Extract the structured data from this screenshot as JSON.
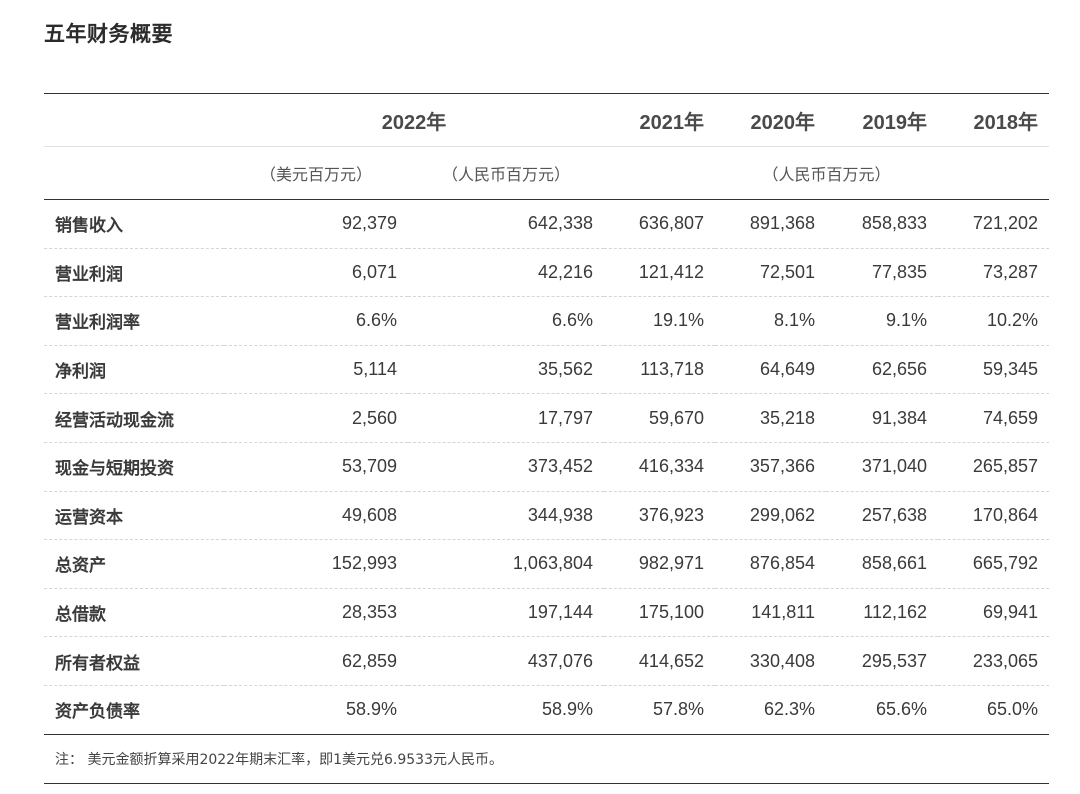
{
  "title": "五年财务概要",
  "header": {
    "years": [
      "2022年",
      "2021年",
      "2020年",
      "2019年",
      "2018年"
    ],
    "unit_usd": "（美元百万元）",
    "unit_rmb_2022": "（人民币百万元）",
    "unit_rmb_hist": "（人民币百万元）"
  },
  "rows": [
    {
      "label": "销售收入",
      "values": [
        "92,379",
        "642,338",
        "636,807",
        "891,368",
        "858,833",
        "721,202"
      ]
    },
    {
      "label": "营业利润",
      "values": [
        "6,071",
        "42,216",
        "121,412",
        "72,501",
        "77,835",
        "73,287"
      ]
    },
    {
      "label": "营业利润率",
      "values": [
        "6.6%",
        "6.6%",
        "19.1%",
        "8.1%",
        "9.1%",
        "10.2%"
      ]
    },
    {
      "label": "净利润",
      "values": [
        "5,114",
        "35,562",
        "113,718",
        "64,649",
        "62,656",
        "59,345"
      ]
    },
    {
      "label": "经营活动现金流",
      "values": [
        "2,560",
        "17,797",
        "59,670",
        "35,218",
        "91,384",
        "74,659"
      ]
    },
    {
      "label": "现金与短期投资",
      "values": [
        "53,709",
        "373,452",
        "416,334",
        "357,366",
        "371,040",
        "265,857"
      ]
    },
    {
      "label": "运营资本",
      "values": [
        "49,608",
        "344,938",
        "376,923",
        "299,062",
        "257,638",
        "170,864"
      ]
    },
    {
      "label": "总资产",
      "values": [
        "152,993",
        "1,063,804",
        "982,971",
        "876,854",
        "858,661",
        "665,792"
      ]
    },
    {
      "label": "总借款",
      "values": [
        "28,353",
        "197,144",
        "175,100",
        "141,811",
        "112,162",
        "69,941"
      ]
    },
    {
      "label": "所有者权益",
      "values": [
        "62,859",
        "437,076",
        "414,652",
        "330,408",
        "295,537",
        "233,065"
      ]
    },
    {
      "label": "资产负债率",
      "values": [
        "58.9%",
        "58.9%",
        "57.8%",
        "62.3%",
        "65.6%",
        "65.0%"
      ]
    }
  ],
  "note": "注： 美元金额折算采用2022年期末汇率，即1美元兑6.9533元人民币。"
}
